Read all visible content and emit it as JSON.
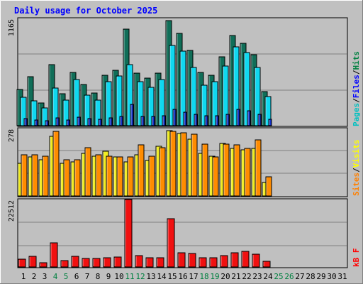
{
  "title": "Daily usage for October 2025",
  "colors": {
    "background": "#c0c0c0",
    "title_text": "#0000ff",
    "pages": "#00c0c0",
    "files": "#0000ff",
    "hits": "#008040",
    "sites": "#ffff00",
    "visits": "#ff8000",
    "kbytes": "#ff0000",
    "weekend_day": "#008040",
    "weekday": "#000000"
  },
  "right_labels": {
    "top": [
      "Pages",
      "Files",
      "Hits"
    ],
    "top_separators": [
      "/",
      "/"
    ],
    "mid": [
      "Sites",
      "Visits"
    ],
    "mid_separators": [
      "/"
    ],
    "bottom": [
      "kB F"
    ]
  },
  "chart_data": [
    {
      "type": "bar",
      "panel": "hits-files-pages",
      "ymax_label": "1165",
      "ylim": [
        0,
        1165
      ],
      "categories": [
        "1",
        "2",
        "3",
        "4",
        "5",
        "6",
        "7",
        "8",
        "9",
        "10",
        "11",
        "12",
        "13",
        "14",
        "15",
        "16",
        "17",
        "18",
        "19",
        "20",
        "21",
        "22",
        "23",
        "24",
        "25",
        "26",
        "27",
        "28",
        "29",
        "30",
        "31"
      ],
      "series": [
        {
          "name": "Hits",
          "values": [
            390,
            530,
            245,
            665,
            350,
            580,
            450,
            355,
            550,
            600,
            1050,
            570,
            520,
            570,
            1140,
            1000,
            815,
            575,
            545,
            745,
            980,
            895,
            770,
            370,
            0,
            0,
            0,
            0,
            0,
            0,
            0
          ]
        },
        {
          "name": "Files",
          "values": [
            310,
            270,
            190,
            410,
            275,
            505,
            335,
            280,
            480,
            540,
            665,
            475,
            415,
            500,
            870,
            810,
            630,
            440,
            480,
            645,
            855,
            795,
            635,
            320,
            0,
            0,
            0,
            0,
            0,
            0,
            0
          ]
        },
        {
          "name": "Pages",
          "values": [
            75,
            60,
            55,
            85,
            60,
            95,
            80,
            70,
            85,
            100,
            230,
            100,
            100,
            105,
            175,
            150,
            120,
            105,
            110,
            125,
            180,
            165,
            120,
            70,
            0,
            0,
            0,
            0,
            0,
            0,
            0
          ]
        }
      ],
      "weekend_days": [
        "4",
        "5",
        "11",
        "12",
        "18",
        "19",
        "25",
        "26"
      ]
    },
    {
      "type": "bar",
      "panel": "visits-sites",
      "ymax_label": "278",
      "ylim": [
        0,
        278
      ],
      "series": [
        {
          "name": "Visits",
          "values": [
            170,
            170,
            165,
            265,
            150,
            150,
            200,
            170,
            165,
            160,
            160,
            210,
            165,
            200,
            265,
            260,
            255,
            215,
            160,
            215,
            210,
            195,
            230,
            80,
            0,
            0,
            0,
            0,
            0,
            0,
            0
          ]
        },
        {
          "name": "Sites",
          "values": [
            135,
            160,
            150,
            245,
            135,
            140,
            175,
            165,
            185,
            160,
            140,
            170,
            145,
            205,
            270,
            258,
            235,
            175,
            165,
            218,
            195,
            190,
            195,
            55,
            0,
            0,
            0,
            0,
            0,
            0,
            0
          ]
        }
      ]
    },
    {
      "type": "bar",
      "panel": "kbytes",
      "ymax_label": "22512",
      "ylim": [
        0,
        22512
      ],
      "series": [
        {
          "name": "kB F",
          "values": [
            2700,
            3600,
            1500,
            8000,
            2100,
            3500,
            2900,
            2900,
            3000,
            3400,
            22500,
            3800,
            3000,
            3000,
            16000,
            4800,
            4600,
            3100,
            3100,
            3900,
            4800,
            5100,
            4200,
            2000,
            0,
            0,
            0,
            0,
            0,
            0,
            0
          ]
        }
      ]
    }
  ]
}
